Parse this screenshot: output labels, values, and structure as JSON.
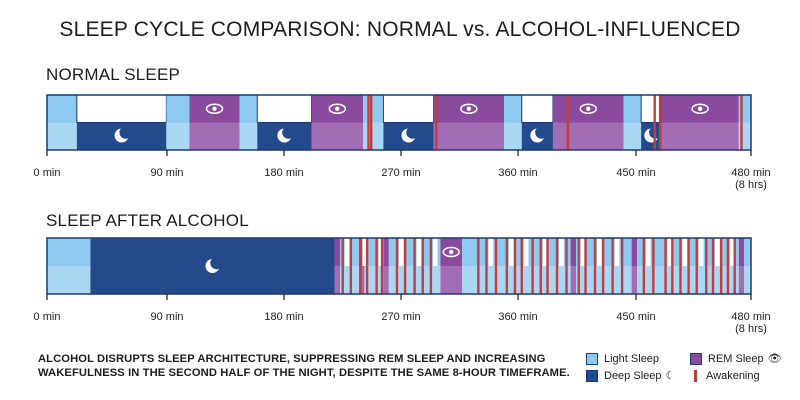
{
  "title": "SLEEP CYCLE COMPARISON: NORMAL vs. ALCOHOL-INFLUENCED",
  "colors": {
    "light": "#8ec9ef",
    "deep": "#244a8b",
    "rem": "#8a4a9e",
    "awake": "#c23e3e",
    "outline": "#1a3a78"
  },
  "chart_data": [
    {
      "type": "timeline",
      "title": "NORMAL SLEEP",
      "x_unit": "min",
      "x_range": [
        0,
        480
      ],
      "ticks": [
        {
          "value": 0,
          "label": "0 min"
        },
        {
          "value": 90,
          "label": "90 min"
        },
        {
          "value": 180,
          "label": "180 min"
        },
        {
          "value": 270,
          "label": "270 min"
        },
        {
          "value": 360,
          "label": "360 min"
        },
        {
          "value": 450,
          "label": "450 min"
        },
        {
          "value": 480,
          "label": "480 min",
          "sublabel": "(8 hrs)"
        }
      ],
      "segments": [
        {
          "stage": "light",
          "start": 0,
          "end": 22
        },
        {
          "stage": "deep",
          "start": 22,
          "end": 88
        },
        {
          "stage": "light",
          "start": 88,
          "end": 105
        },
        {
          "stage": "rem",
          "start": 105,
          "end": 142
        },
        {
          "stage": "light",
          "start": 142,
          "end": 155
        },
        {
          "stage": "deep",
          "start": 155,
          "end": 195
        },
        {
          "stage": "rem",
          "start": 195,
          "end": 233
        },
        {
          "stage": "light",
          "start": 233,
          "end": 248
        },
        {
          "stage": "deep",
          "start": 248,
          "end": 285
        },
        {
          "stage": "rem",
          "start": 285,
          "end": 337
        },
        {
          "stage": "light",
          "start": 337,
          "end": 350
        },
        {
          "stage": "deep",
          "start": 350,
          "end": 373
        },
        {
          "stage": "rem",
          "start": 373,
          "end": 425
        },
        {
          "stage": "light",
          "start": 425,
          "end": 438
        },
        {
          "stage": "deep",
          "start": 438,
          "end": 453
        },
        {
          "stage": "rem",
          "start": 453,
          "end": 510
        },
        {
          "stage": "light",
          "start": 510,
          "end": 519
        }
      ],
      "awakenings": [
        237,
        239,
        287,
        384,
        448,
        452,
        512
      ]
    },
    {
      "type": "timeline",
      "title": "SLEEP AFTER ALCOHOL",
      "x_unit": "min",
      "x_range": [
        0,
        480
      ],
      "ticks": [
        {
          "value": 0,
          "label": "0 min"
        },
        {
          "value": 90,
          "label": "90 min"
        },
        {
          "value": 180,
          "label": "180 min"
        },
        {
          "value": 270,
          "label": "270 min"
        },
        {
          "value": 360,
          "label": "360 min"
        },
        {
          "value": 450,
          "label": "450 min"
        },
        {
          "value": 480,
          "label": "480 min",
          "sublabel": "(8 hrs)"
        }
      ],
      "segments": [
        {
          "stage": "light",
          "start": 0,
          "end": 32
        },
        {
          "stage": "deep",
          "start": 32,
          "end": 212
        },
        {
          "stage": "rem",
          "start": 212,
          "end": 216
        },
        {
          "stage": "light",
          "start": 216,
          "end": 230
        },
        {
          "stage": "rem",
          "start": 230,
          "end": 234
        },
        {
          "stage": "light",
          "start": 234,
          "end": 248
        },
        {
          "stage": "rem",
          "start": 248,
          "end": 252
        },
        {
          "stage": "light",
          "start": 252,
          "end": 290
        },
        {
          "stage": "rem",
          "start": 290,
          "end": 306
        },
        {
          "stage": "light",
          "start": 306,
          "end": 386
        },
        {
          "stage": "rem",
          "start": 386,
          "end": 390
        },
        {
          "stage": "light",
          "start": 390,
          "end": 431
        },
        {
          "stage": "rem",
          "start": 431,
          "end": 435
        },
        {
          "stage": "light",
          "start": 435,
          "end": 510
        },
        {
          "stage": "rem",
          "start": 510,
          "end": 514
        },
        {
          "stage": "light",
          "start": 514,
          "end": 519
        }
      ],
      "awakenings": [
        218,
        224,
        231,
        236,
        243,
        247,
        258,
        264,
        271,
        277,
        283,
        318,
        324,
        331,
        339,
        345,
        350,
        358,
        364,
        369,
        376,
        383,
        392,
        397,
        404,
        410,
        417,
        424,
        440,
        447,
        456,
        461,
        467,
        473,
        479,
        486,
        491,
        497,
        502,
        507
      ]
    }
  ],
  "note": "ALCOHOL DISRUPTS SLEEP ARCHITECTURE, SUPPRESSING REM SLEEP AND INCREASING WAKEFULNESS IN THE SECOND HALF OF THE NIGHT, DESPITE THE SAME 8-HOUR TIMEFRAME.",
  "legend": {
    "light": "Light Sleep",
    "deep": "Deep Sleep",
    "rem": "REM Sleep",
    "awake": "Awakening",
    "deep_glyph": "☾",
    "rem_glyph": "👁"
  }
}
